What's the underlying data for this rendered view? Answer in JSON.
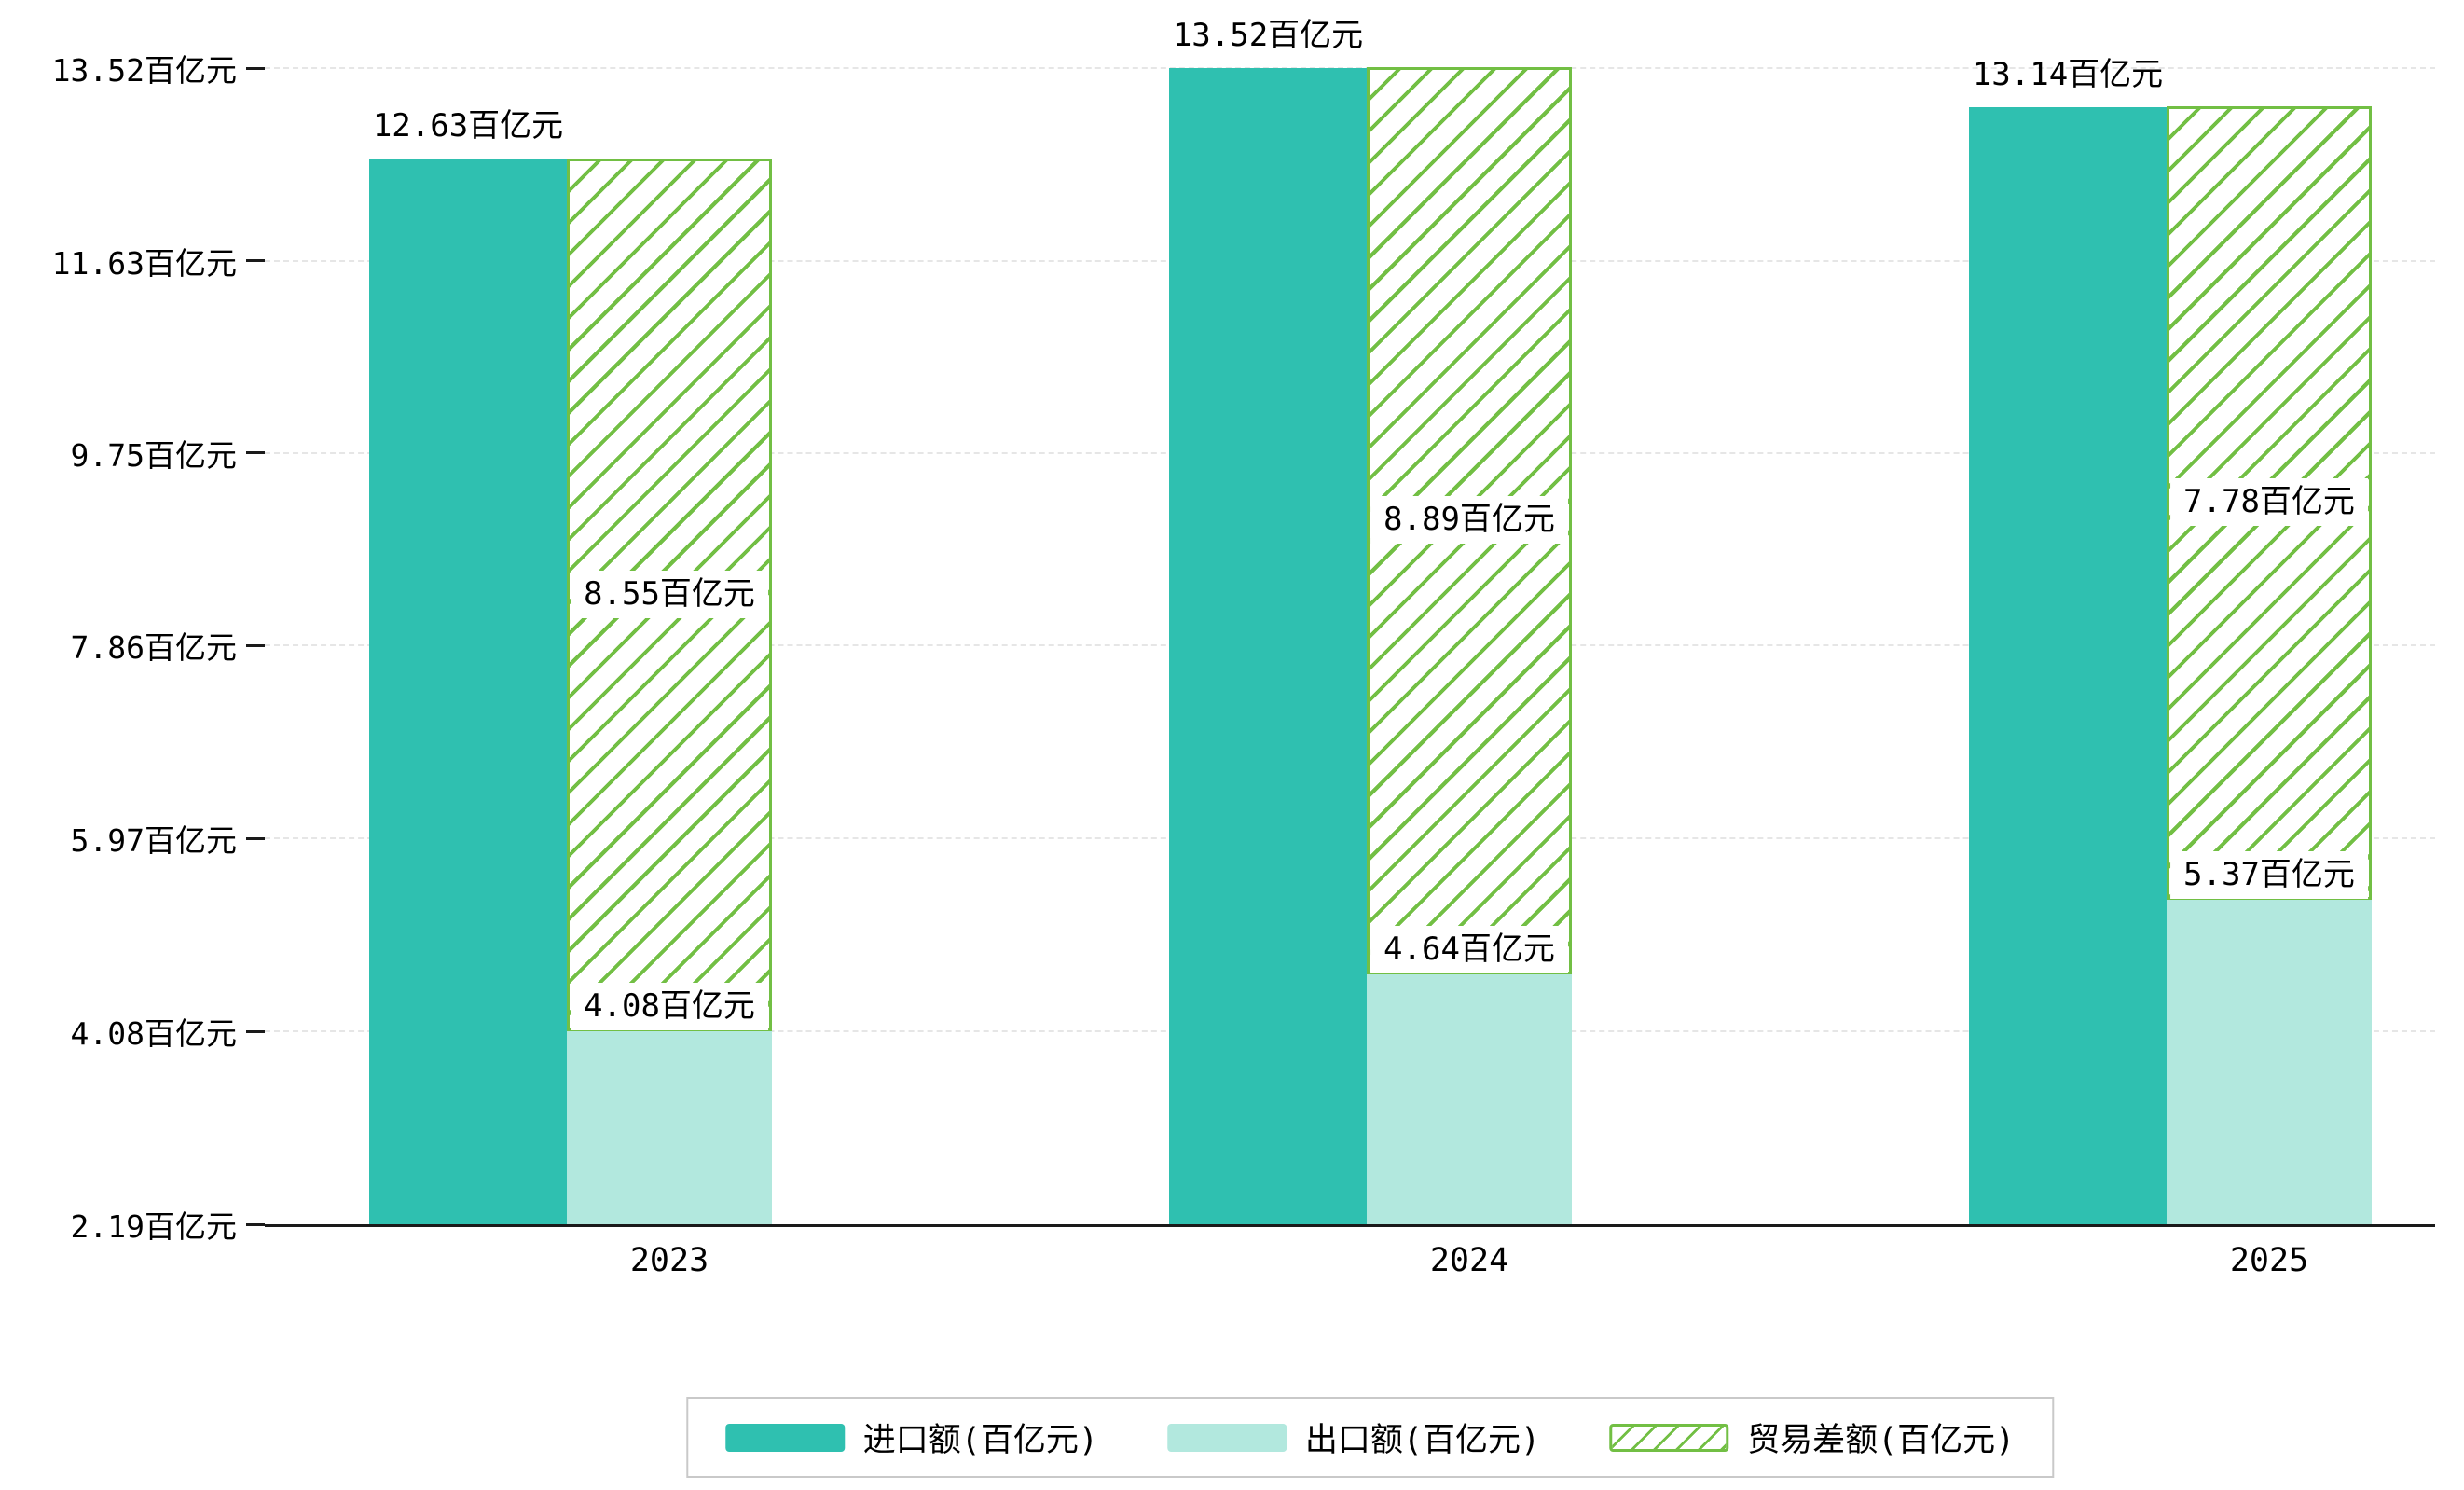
{
  "chart_data": {
    "type": "bar",
    "title": "",
    "unit": "百亿元",
    "categories": [
      "2023",
      "2024",
      "2025"
    ],
    "series": [
      {
        "name": "进口额(百亿元)",
        "role": "import",
        "style": "solid",
        "color": "#2fc0b0",
        "values": [
          12.63,
          13.52,
          13.14
        ]
      },
      {
        "name": "出口额(百亿元)",
        "role": "export",
        "style": "solid",
        "color": "#b2e8de",
        "values": [
          4.08,
          4.64,
          5.37
        ]
      },
      {
        "name": "贸易差额(百亿元)",
        "role": "difference",
        "style": "hatched",
        "color": "#72bf44",
        "stacked_on": "出口额(百亿元)",
        "values": [
          8.55,
          8.89,
          7.78
        ]
      }
    ],
    "bar_labels": {
      "import": [
        "12.63百亿元",
        "13.52百亿元",
        "13.14百亿元"
      ],
      "export": [
        "4.08百亿元",
        "4.64百亿元",
        "5.37百亿元"
      ],
      "difference": [
        "8.55百亿元",
        "8.89百亿元",
        "7.78百亿元"
      ]
    },
    "y_ticks": [
      "13.52百亿元",
      "11.63百亿元",
      "9.75百亿元",
      "7.86百亿元",
      "5.97百亿元",
      "4.08百亿元",
      "2.19百亿元"
    ],
    "y_tick_values": [
      13.52,
      11.63,
      9.75,
      7.86,
      5.97,
      4.08,
      2.19
    ],
    "ylim": [
      2.19,
      13.52
    ],
    "xlabel": "",
    "ylabel": "",
    "grid": "dashed-horizontal",
    "legend_position": "bottom",
    "legend": [
      "进口额(百亿元)",
      "出口额(百亿元)",
      "贸易差额(百亿元)"
    ],
    "colors": {
      "import": "#2fc0b0",
      "export": "#b2e8de",
      "difference_stroke": "#72bf44",
      "grid": "#e6e6e6",
      "axis": "#1a1a1a",
      "background": "#ffffff"
    }
  }
}
